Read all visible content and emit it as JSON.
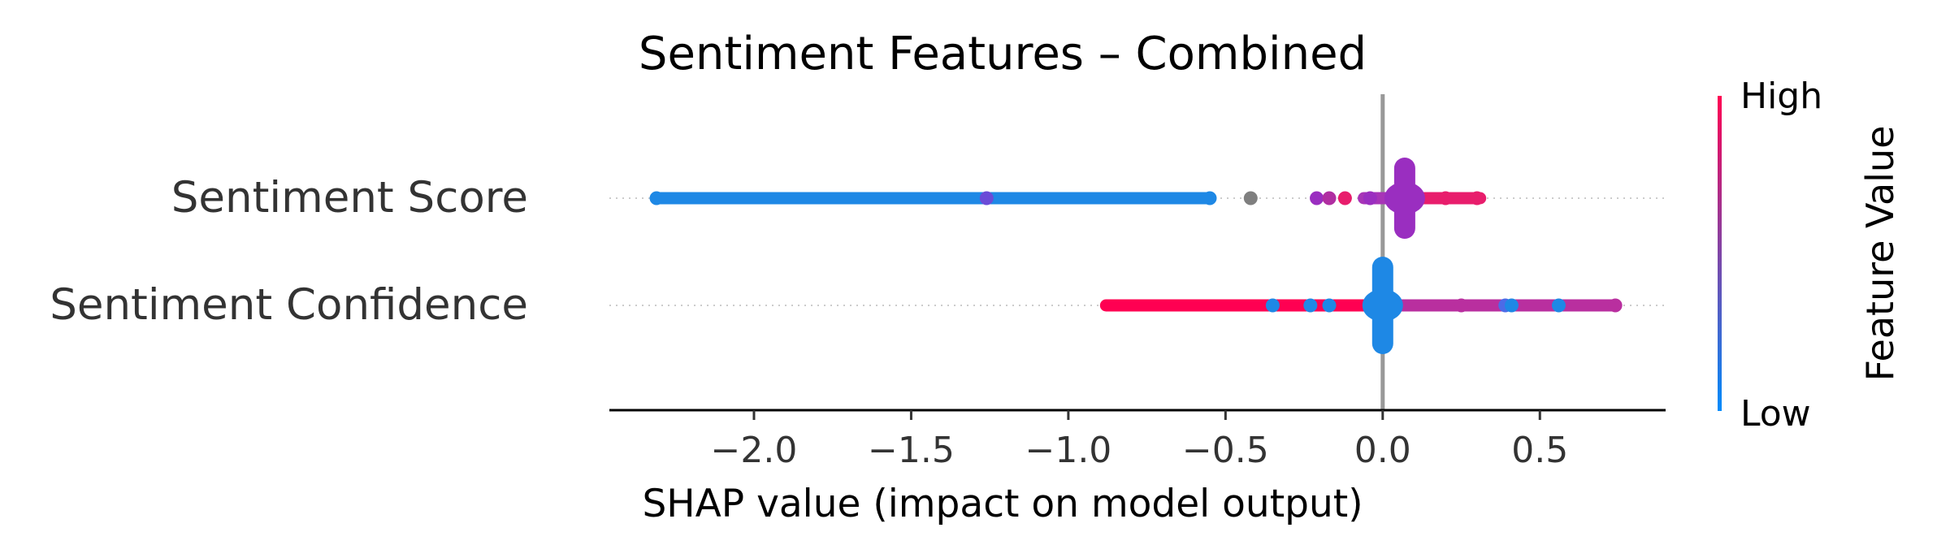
{
  "chart_data": {
    "type": "scatter",
    "subtype": "shap-beeswarm",
    "title": "Sentiment Features – Combined",
    "xlabel": "SHAP value (impact on model output)",
    "ylabel": "",
    "xlim": [
      -2.46,
      0.9
    ],
    "xticks": [
      -2.0,
      -1.5,
      -1.0,
      -0.5,
      0.0,
      0.5
    ],
    "xtick_labels": [
      "−2.0",
      "−1.5",
      "−1.0",
      "−0.5",
      "0.0",
      "0.5"
    ],
    "features": [
      {
        "name": "Sentiment Score",
        "segments": [
          {
            "x0": -2.31,
            "x1": -0.55,
            "color": "#1e88e5"
          },
          {
            "x0": -0.06,
            "x1": 0.04,
            "color": "#a734b7"
          },
          {
            "x0": 0.04,
            "x1": 0.31,
            "color": "#e81d6c"
          }
        ],
        "points": [
          {
            "x": -2.31,
            "color": "#1e88e5"
          },
          {
            "x": -1.26,
            "color": "#6b4bd7"
          },
          {
            "x": -0.55,
            "color": "#1e88e5"
          },
          {
            "x": -0.42,
            "color": "#7f7f7f"
          },
          {
            "x": -0.21,
            "color": "#9a2ec0"
          },
          {
            "x": -0.17,
            "color": "#b02ea1"
          },
          {
            "x": -0.12,
            "color": "#e81d6c"
          },
          {
            "x": -0.04,
            "color": "#9a2ec0"
          },
          {
            "x": 0.2,
            "color": "#e81d6c"
          },
          {
            "x": 0.3,
            "color": "#e81d6c"
          }
        ],
        "blob": {
          "x": 0.07,
          "color": "#9a2ec0",
          "density": "tall"
        }
      },
      {
        "name": "Sentiment Confidence",
        "segments": [
          {
            "x0": -0.88,
            "x1": -0.04,
            "color": "#ff0052"
          },
          {
            "x0": -0.04,
            "x1": 0.03,
            "color": "#5f6ae2"
          },
          {
            "x0": 0.03,
            "x1": 0.74,
            "color": "#b92f9f"
          }
        ],
        "points": [
          {
            "x": -0.35,
            "color": "#1e88e5"
          },
          {
            "x": -0.23,
            "color": "#1e88e5"
          },
          {
            "x": -0.17,
            "color": "#1e88e5"
          },
          {
            "x": 0.25,
            "color": "#b92f9f"
          },
          {
            "x": 0.39,
            "color": "#4c6be7"
          },
          {
            "x": 0.41,
            "color": "#1e88e5"
          },
          {
            "x": 0.56,
            "color": "#1e88e5"
          },
          {
            "x": 0.74,
            "color": "#b92f9f"
          }
        ],
        "blob": {
          "x": 0.0,
          "color": "#1e88e5",
          "density": "tall"
        }
      }
    ],
    "colorbar": {
      "label": "Feature Value",
      "high_label": "High",
      "low_label": "Low",
      "high_color": "#ff0052",
      "low_color": "#008bfb"
    },
    "grid": false
  }
}
